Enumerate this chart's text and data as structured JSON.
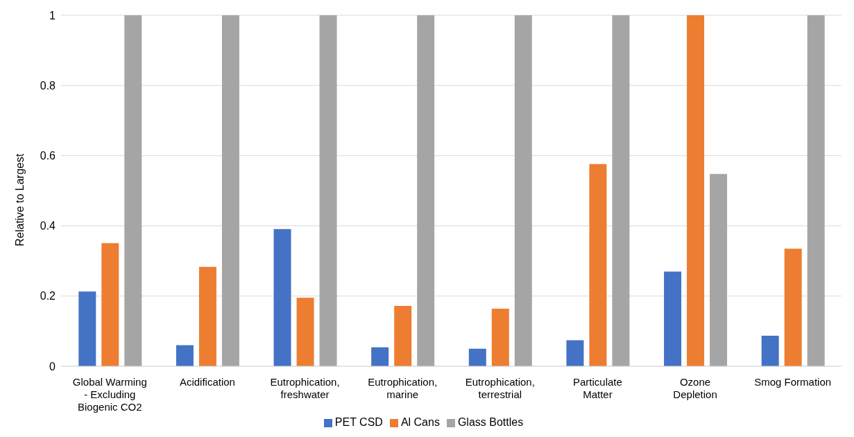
{
  "chart_data": {
    "type": "bar",
    "ylabel": "Relative to Largest",
    "categories": [
      "Global Warming - Excluding Biogenic CO2",
      "Acidification",
      "Eutrophication, freshwater",
      "Eutrophication, marine",
      "Eutrophication, terrestrial",
      "Particulate Matter",
      "Ozone Depletion",
      "Smog Formation"
    ],
    "series": [
      {
        "name": "PET CSD",
        "color": "#4472c4",
        "values": [
          0.213,
          0.06,
          0.391,
          0.054,
          0.05,
          0.074,
          0.27,
          0.087
        ]
      },
      {
        "name": "Al Cans",
        "color": "#ed7d31",
        "values": [
          0.351,
          0.283,
          0.195,
          0.172,
          0.164,
          0.576,
          1,
          0.335
        ]
      },
      {
        "name": "Glass Bottles",
        "color": "#a5a5a5",
        "values": [
          1,
          1,
          1,
          1,
          1,
          1,
          0.548,
          1
        ]
      }
    ],
    "ylim": [
      0,
      1
    ],
    "yticks": [
      0,
      0.2,
      0.4,
      0.6,
      0.8,
      1
    ],
    "grid": "y",
    "legend": "bottom"
  }
}
